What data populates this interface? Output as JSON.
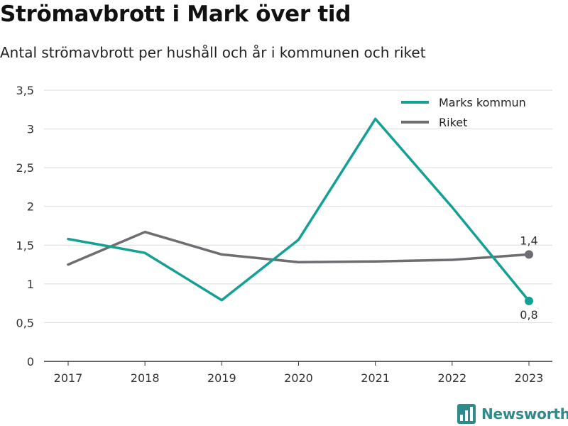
{
  "header": {
    "title": "Strömavbrott i Mark över tid",
    "subtitle": "Antal strömavbrott per hushåll och år i kommunen och riket"
  },
  "branding": {
    "logo_text": "Newsworthy",
    "logo_icon": "newsworthy-bar-chart-icon",
    "logo_color": "#2f8a8c"
  },
  "chart_data": {
    "type": "line",
    "x": [
      "2017",
      "2018",
      "2019",
      "2020",
      "2021",
      "2022",
      "2023"
    ],
    "ylim": [
      0,
      3.5
    ],
    "yticks": [
      "0",
      "0,5",
      "1",
      "1,5",
      "2",
      "2,5",
      "3",
      "3,5"
    ],
    "grid": true,
    "legend": "top-right",
    "series": [
      {
        "name": "Marks kommun",
        "color": "#14a094",
        "values": [
          1.58,
          1.4,
          0.79,
          1.57,
          3.13,
          1.99,
          0.78
        ],
        "end_label": "0,8"
      },
      {
        "name": "Riket",
        "color": "#6d6d72",
        "values": [
          1.25,
          1.67,
          1.38,
          1.28,
          1.29,
          1.31,
          1.38
        ],
        "end_label": "1,4"
      }
    ]
  }
}
